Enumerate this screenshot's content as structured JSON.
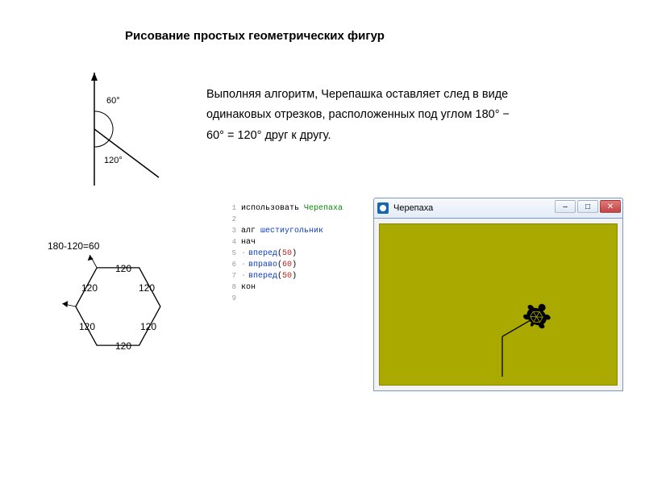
{
  "title": "Рисование простых геометрических фигур",
  "body_text": "Выполняя алгоритм, Черепашка оставляет след в виде одинаковых отрезков, расположенных под углом 180° − 60° = 120° друг к другу.",
  "angle_diagram": {
    "label_60": "60°",
    "label_120": "120°"
  },
  "equation": "180-120=60",
  "hexagon": {
    "label": "120"
  },
  "code": {
    "lines": [
      {
        "n": 1,
        "tokens": [
          [
            "kw",
            "использовать"
          ],
          [
            "sp",
            " "
          ],
          [
            "green",
            "Черепаха"
          ]
        ]
      },
      {
        "n": 2,
        "tokens": []
      },
      {
        "n": 3,
        "tokens": [
          [
            "kw",
            "алг"
          ],
          [
            "sp",
            " "
          ],
          [
            "blue",
            "шестиугольник"
          ]
        ]
      },
      {
        "n": 4,
        "tokens": [
          [
            "kw",
            "нач"
          ]
        ]
      },
      {
        "n": 5,
        "tokens": [
          [
            "dot",
            "·"
          ],
          [
            "blue",
            "вперед"
          ],
          [
            "kw",
            "("
          ],
          [
            "num",
            "50"
          ],
          [
            "kw",
            ")"
          ]
        ]
      },
      {
        "n": 6,
        "tokens": [
          [
            "dot",
            "·"
          ],
          [
            "blue",
            "вправо"
          ],
          [
            "kw",
            "("
          ],
          [
            "num",
            "60"
          ],
          [
            "kw",
            ")"
          ]
        ]
      },
      {
        "n": 7,
        "tokens": [
          [
            "dot",
            "·"
          ],
          [
            "blue",
            "вперед"
          ],
          [
            "kw",
            "("
          ],
          [
            "num",
            "50"
          ],
          [
            "kw",
            ")"
          ]
        ]
      },
      {
        "n": 8,
        "tokens": [
          [
            "kw",
            "кон"
          ]
        ]
      },
      {
        "n": 9,
        "tokens": []
      }
    ]
  },
  "turtle_window": {
    "title": "Черепаха",
    "canvas_bg": "#a9a900",
    "win_min": "–",
    "win_max": "□",
    "win_close": "✕",
    "path_color": "#000000"
  }
}
